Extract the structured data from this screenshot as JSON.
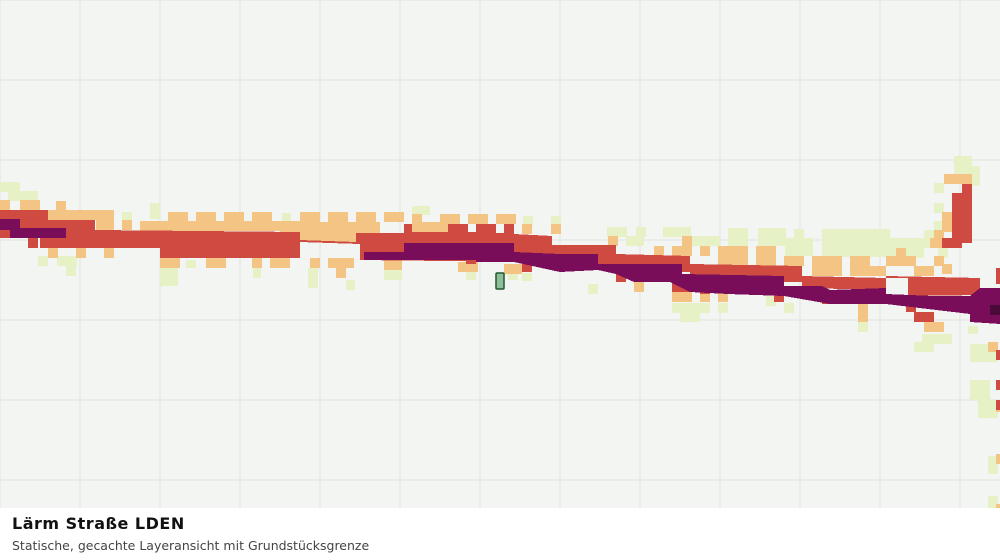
{
  "caption": {
    "title": "Lärm Straße LDEN",
    "subtitle": "Statische, gecachte Layeransicht mit Grundstücksgrenze"
  },
  "map": {
    "background_color": "#f3f5f2",
    "grid_color": "#dfe2de",
    "noise_classes": [
      {
        "id": "c1",
        "color": "#e6f1c6"
      },
      {
        "id": "c2",
        "color": "#f3c484"
      },
      {
        "id": "c3",
        "color": "#cf4a40"
      },
      {
        "id": "c4",
        "color": "#7a0d5a"
      },
      {
        "id": "c5",
        "color": "#4a0a3a"
      }
    ],
    "parcel": {
      "fill_color": "#8fbf9a",
      "stroke_color": "#1d5a2e"
    }
  }
}
